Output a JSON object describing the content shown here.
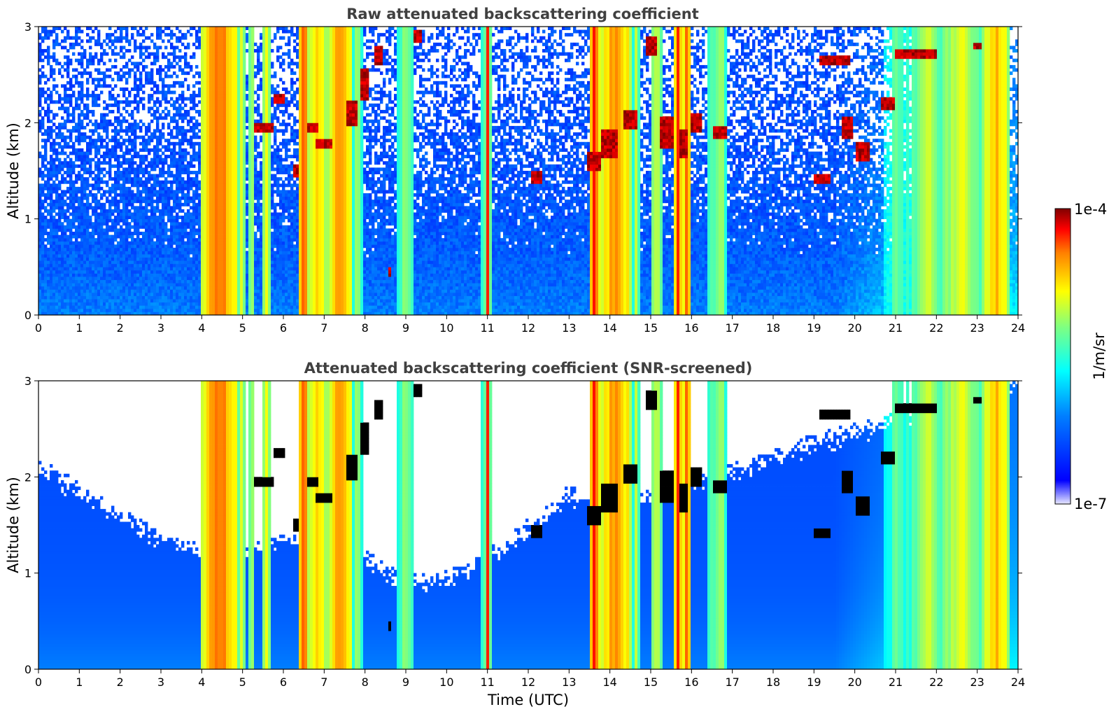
{
  "chart_data": [
    {
      "type": "heatmap",
      "title": "Raw attenuated backscattering coefficient",
      "xlabel": "",
      "ylabel": "Altitude (km)",
      "xlim": [
        0,
        24
      ],
      "ylim": [
        0,
        3
      ],
      "xticks": [
        "0",
        "1",
        "2",
        "3",
        "4",
        "5",
        "6",
        "7",
        "8",
        "9",
        "10",
        "11",
        "12",
        "13",
        "14",
        "15",
        "16",
        "17",
        "18",
        "19",
        "20",
        "21",
        "22",
        "23",
        "24"
      ],
      "yticks": [
        "0",
        "1",
        "2",
        "3"
      ],
      "screened": false,
      "features": {
        "towers": [
          {
            "x": [
              4.0,
              4.9
            ],
            "intensity": 0.78
          },
          {
            "x": [
              4.9,
              5.05
            ],
            "intensity": 0.58
          },
          {
            "x": [
              5.15,
              5.3
            ],
            "intensity": 0.55
          },
          {
            "x": [
              5.5,
              5.7
            ],
            "intensity": 0.6
          },
          {
            "x": [
              6.4,
              6.6
            ],
            "intensity": 0.85
          },
          {
            "x": [
              6.6,
              7.1
            ],
            "intensity": 0.7
          },
          {
            "x": [
              7.1,
              7.7
            ],
            "intensity": 0.75
          },
          {
            "x": [
              7.7,
              7.95
            ],
            "intensity": 0.55
          },
          {
            "x": [
              8.8,
              9.2
            ],
            "intensity": 0.55
          },
          {
            "x": [
              10.95,
              11.05
            ],
            "intensity": 0.85
          },
          {
            "x": [
              10.85,
              11.1
            ],
            "intensity": 0.55
          },
          {
            "x": [
              13.5,
              13.75
            ],
            "intensity": 0.85
          },
          {
            "x": [
              13.75,
              14.55
            ],
            "intensity": 0.75
          },
          {
            "x": [
              14.55,
              14.75
            ],
            "intensity": 0.55
          },
          {
            "x": [
              15.0,
              15.3
            ],
            "intensity": 0.6
          },
          {
            "x": [
              15.6,
              15.75
            ],
            "intensity": 0.85
          },
          {
            "x": [
              15.75,
              16.0
            ],
            "intensity": 0.75
          },
          {
            "x": [
              16.4,
              16.55
            ],
            "intensity": 0.5
          },
          {
            "x": [
              16.55,
              16.85
            ],
            "intensity": 0.55
          },
          {
            "x": [
              20.7,
              21.4
            ],
            "intensity": 0.48
          },
          {
            "x": [
              21.4,
              22.1
            ],
            "intensity": 0.58
          },
          {
            "x": [
              22.1,
              23.1
            ],
            "intensity": 0.62
          },
          {
            "x": [
              23.1,
              23.8
            ],
            "intensity": 0.7
          }
        ],
        "cloud_patches": [
          {
            "x": 5.5,
            "y": 1.95,
            "w": 0.5,
            "h": 0.12
          },
          {
            "x": 5.9,
            "y": 2.25,
            "w": 0.3,
            "h": 0.12
          },
          {
            "x": 7.0,
            "y": 1.78,
            "w": 0.4,
            "h": 0.1
          },
          {
            "x": 6.7,
            "y": 1.95,
            "w": 0.3,
            "h": 0.12
          },
          {
            "x": 7.7,
            "y": 2.1,
            "w": 0.3,
            "h": 0.25
          },
          {
            "x": 8.0,
            "y": 2.4,
            "w": 0.25,
            "h": 0.3
          },
          {
            "x": 8.3,
            "y": 2.7,
            "w": 0.2,
            "h": 0.2
          },
          {
            "x": 6.3,
            "y": 1.5,
            "w": 0.15,
            "h": 0.12
          },
          {
            "x": 8.6,
            "y": 0.45,
            "w": 0.08,
            "h": 0.12
          },
          {
            "x": 9.3,
            "y": 2.9,
            "w": 0.2,
            "h": 0.15
          },
          {
            "x": 12.2,
            "y": 1.43,
            "w": 0.25,
            "h": 0.12
          },
          {
            "x": 13.6,
            "y": 1.6,
            "w": 0.3,
            "h": 0.2
          },
          {
            "x": 14.0,
            "y": 1.8,
            "w": 0.4,
            "h": 0.3
          },
          {
            "x": 14.5,
            "y": 2.05,
            "w": 0.3,
            "h": 0.2
          },
          {
            "x": 15.0,
            "y": 2.8,
            "w": 0.3,
            "h": 0.2
          },
          {
            "x": 15.4,
            "y": 1.9,
            "w": 0.3,
            "h": 0.3
          },
          {
            "x": 15.8,
            "y": 1.8,
            "w": 0.25,
            "h": 0.3
          },
          {
            "x": 16.1,
            "y": 2.0,
            "w": 0.3,
            "h": 0.2
          },
          {
            "x": 16.7,
            "y": 1.9,
            "w": 0.3,
            "h": 0.15
          },
          {
            "x": 19.2,
            "y": 1.42,
            "w": 0.35,
            "h": 0.12
          },
          {
            "x": 19.8,
            "y": 1.95,
            "w": 0.3,
            "h": 0.2
          },
          {
            "x": 20.2,
            "y": 1.7,
            "w": 0.3,
            "h": 0.2
          },
          {
            "x": 19.5,
            "y": 2.65,
            "w": 0.8,
            "h": 0.12
          },
          {
            "x": 20.8,
            "y": 2.2,
            "w": 0.3,
            "h": 0.15
          },
          {
            "x": 21.5,
            "y": 2.72,
            "w": 1.0,
            "h": 0.12
          },
          {
            "x": 23.0,
            "y": 2.8,
            "w": 0.15,
            "h": 0.05
          }
        ]
      }
    },
    {
      "type": "heatmap",
      "title": "Attenuated backscattering coefficient (SNR-screened)",
      "xlabel": "Time (UTC)",
      "ylabel": "Altitude (km)",
      "xlim": [
        0,
        24
      ],
      "ylim": [
        0,
        3
      ],
      "xticks": [
        "0",
        "1",
        "2",
        "3",
        "4",
        "5",
        "6",
        "7",
        "8",
        "9",
        "10",
        "11",
        "12",
        "13",
        "14",
        "15",
        "16",
        "17",
        "18",
        "19",
        "20",
        "21",
        "22",
        "23",
        "24"
      ],
      "yticks": [
        "0",
        "1",
        "2",
        "3"
      ],
      "screened": true,
      "screen_top_km": [
        [
          0,
          2.1
        ],
        [
          1,
          1.85
        ],
        [
          2,
          1.6
        ],
        [
          3,
          1.35
        ],
        [
          4,
          1.2
        ],
        [
          5,
          1.25
        ],
        [
          6,
          1.35
        ],
        [
          7,
          1.3
        ],
        [
          8,
          1.15
        ],
        [
          9,
          0.9
        ],
        [
          10,
          0.95
        ],
        [
          11,
          1.15
        ],
        [
          12,
          1.45
        ],
        [
          13,
          1.8
        ],
        [
          14,
          1.75
        ],
        [
          15,
          1.8
        ],
        [
          16,
          1.95
        ],
        [
          17,
          2.05
        ],
        [
          18,
          2.2
        ],
        [
          19,
          2.35
        ],
        [
          20,
          2.45
        ],
        [
          21,
          2.6
        ],
        [
          22,
          2.7
        ],
        [
          23,
          2.85
        ],
        [
          24,
          3.0
        ]
      ]
    }
  ],
  "colorbar": {
    "label": "1/m/sr",
    "min_label": "1e-7",
    "max_label": "1e-4",
    "colormap": "jet",
    "scale": "log"
  },
  "colors": {
    "jet_low": "#0000ff",
    "jet_mid": "#00ffff",
    "jet_high": "#ffff00",
    "jet_top": "#800000",
    "title_gray": "#404040"
  }
}
